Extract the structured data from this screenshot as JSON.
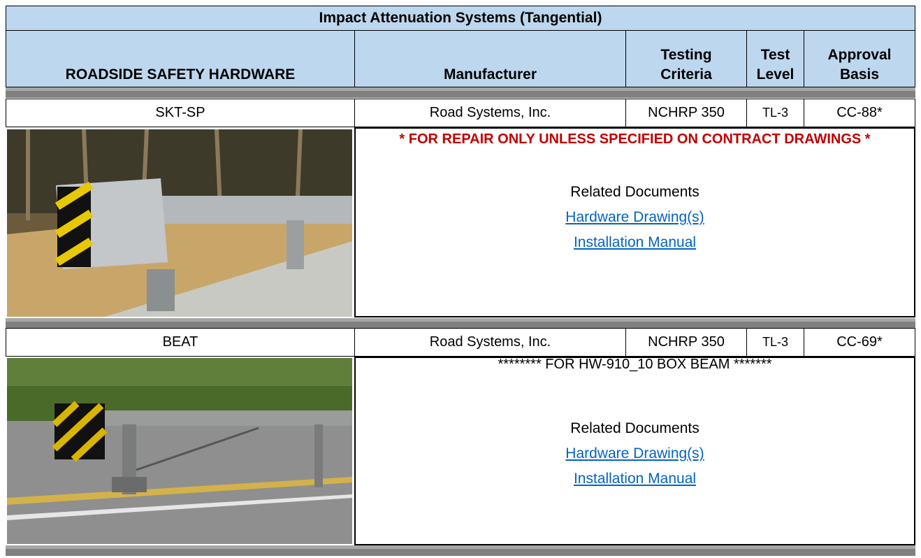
{
  "title": "Impact Attenuation Systems (Tangential)",
  "header": [
    "ROADSIDE SAFETY HARDWARE",
    "Manufacturer",
    "Testing Criteria",
    "Test Level",
    "Approval Basis"
  ],
  "products": [
    {
      "name": "SKT-SP",
      "manufacturer": "Road Systems, Inc.",
      "criteria": "NCHRP 350",
      "level": "TL-3",
      "basis": "CC-88*",
      "note": "*  FOR REPAIR ONLY  UNLESS SPECIFIED ON CONTRACT DRAWINGS *",
      "related": "Related Documents",
      "links": [
        "Hardware Drawing(s)",
        "Installation Manual"
      ]
    },
    {
      "name": "BEAT",
      "manufacturer": "Road Systems, Inc.",
      "criteria": "NCHRP 350",
      "level": "TL-3",
      "basis": "CC-69*",
      "note": "********  FOR HW-910_10 BOX BEAM *******",
      "related": "Related Documents",
      "links": [
        "Hardware Drawing(s)",
        "Installation Manual"
      ]
    }
  ]
}
